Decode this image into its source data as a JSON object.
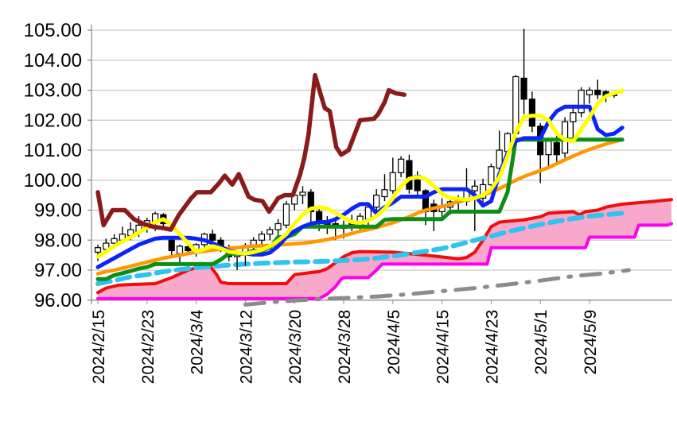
{
  "chart_data": {
    "type": "candlestick",
    "title": "",
    "xlabel": "",
    "ylabel": "",
    "grid": true,
    "legend": "none",
    "ylim": [
      96,
      105
    ],
    "y_step": 1,
    "y_tick_labels": [
      "105.00",
      "104.00",
      "103.00",
      "102.00",
      "101.00",
      "100.00",
      "99.00",
      "98.00",
      "97.00",
      "96.00"
    ],
    "x_tick_labels": [
      "2024/2/15",
      "2024/2/23",
      "2024/3/4",
      "2024/3/12",
      "2024/3/20",
      "2024/3/28",
      "2024/4/5",
      "2024/4/15",
      "2024/4/23",
      "2024/5/1",
      "2024/5/9"
    ],
    "x_tick_indices": [
      0,
      6,
      12,
      18,
      24,
      30,
      36,
      42,
      48,
      54,
      60
    ],
    "total_slots": 71,
    "colors": {
      "up_candle": "#ffffff",
      "down_candle": "#000000",
      "candle_outline": "#000000",
      "grid": "#c9c9c9",
      "axis": "#8f8f8f",
      "text": "#000000",
      "dark_red": "#8b1a1a",
      "yellow": "#ffff00",
      "blue": "#0b24fb",
      "green": "#0d8f16",
      "orange": "#ff9800",
      "cyan": "#2fc3f2",
      "gray": "#8c8c8c",
      "cloud_top": "#f20c0c",
      "cloud_bottom": "#ff00ee",
      "cloud_fill": "#f8a8cb"
    },
    "candles_ohlc": [
      [
        97.6,
        97.85,
        97.3,
        97.75
      ],
      [
        97.7,
        98.05,
        97.55,
        97.9
      ],
      [
        97.9,
        98.2,
        97.75,
        98.05
      ],
      [
        98.0,
        98.45,
        97.9,
        98.2
      ],
      [
        98.15,
        98.6,
        98.0,
        98.35
      ],
      [
        98.25,
        98.8,
        98.1,
        98.5
      ],
      [
        98.4,
        98.75,
        98.25,
        98.65
      ],
      [
        98.6,
        98.95,
        98.3,
        98.88
      ],
      [
        98.85,
        98.9,
        98.35,
        98.55
      ],
      [
        98.0,
        98.1,
        97.5,
        97.65
      ],
      [
        97.55,
        97.85,
        97.25,
        97.8
      ],
      [
        97.78,
        97.95,
        97.55,
        97.65
      ],
      [
        97.65,
        97.9,
        97.45,
        97.85
      ],
      [
        97.85,
        98.25,
        97.7,
        98.2
      ],
      [
        98.2,
        98.35,
        97.9,
        98.0
      ],
      [
        98.0,
        98.1,
        97.6,
        97.72
      ],
      [
        97.7,
        97.85,
        97.3,
        97.45
      ],
      [
        97.45,
        97.65,
        97.0,
        97.55
      ],
      [
        97.55,
        97.9,
        97.15,
        97.82
      ],
      [
        97.82,
        98.1,
        97.6,
        98.0
      ],
      [
        98.0,
        98.3,
        97.85,
        98.2
      ],
      [
        98.2,
        98.45,
        98.0,
        98.35
      ],
      [
        98.35,
        98.7,
        98.1,
        98.55
      ],
      [
        98.5,
        99.3,
        98.4,
        99.2
      ],
      [
        99.2,
        99.85,
        99.0,
        99.5
      ],
      [
        99.5,
        99.8,
        99.2,
        99.6
      ],
      [
        99.6,
        99.7,
        98.6,
        98.95
      ],
      [
        98.95,
        99.1,
        98.3,
        98.6
      ],
      [
        98.65,
        98.8,
        98.2,
        98.5
      ],
      [
        98.55,
        98.7,
        98.0,
        98.45
      ],
      [
        98.5,
        98.65,
        98.05,
        98.4
      ],
      [
        98.55,
        98.85,
        98.3,
        98.45
      ],
      [
        98.45,
        98.9,
        98.35,
        98.8
      ],
      [
        98.7,
        99.2,
        98.4,
        99.1
      ],
      [
        99.1,
        99.7,
        98.95,
        99.5
      ],
      [
        99.45,
        100.2,
        99.3,
        99.68
      ],
      [
        99.65,
        100.75,
        99.55,
        100.25
      ],
      [
        100.25,
        100.8,
        100.1,
        100.7
      ],
      [
        100.65,
        100.85,
        99.55,
        99.7
      ],
      [
        100.15,
        100.3,
        99.4,
        99.65
      ],
      [
        99.65,
        99.7,
        98.5,
        98.95
      ],
      [
        99.2,
        99.35,
        98.3,
        98.95
      ],
      [
        98.95,
        99.4,
        98.75,
        99.15
      ],
      [
        99.1,
        99.35,
        98.85,
        99.28
      ],
      [
        99.25,
        99.5,
        98.9,
        99.35
      ],
      [
        99.3,
        100.4,
        99.15,
        99.7
      ],
      [
        99.65,
        100.0,
        98.3,
        99.8
      ],
      [
        99.4,
        100.05,
        99.1,
        99.85
      ],
      [
        99.85,
        100.55,
        99.6,
        100.45
      ],
      [
        100.4,
        101.65,
        100.3,
        101.0
      ],
      [
        100.95,
        101.6,
        100.7,
        101.55
      ],
      [
        101.55,
        103.5,
        101.4,
        103.45
      ],
      [
        103.4,
        105.05,
        102.2,
        102.7
      ],
      [
        102.7,
        102.95,
        101.6,
        101.8
      ],
      [
        101.8,
        101.9,
        99.9,
        100.85
      ],
      [
        100.85,
        101.4,
        100.4,
        101.3
      ],
      [
        101.25,
        101.5,
        100.55,
        100.85
      ],
      [
        100.9,
        102.1,
        100.75,
        101.95
      ],
      [
        101.95,
        102.5,
        101.35,
        102.25
      ],
      [
        102.25,
        103.1,
        102.1,
        103.0
      ],
      [
        102.85,
        103.1,
        102.55,
        103.0
      ],
      [
        103.0,
        103.35,
        102.7,
        102.85
      ],
      [
        102.95,
        103.0,
        102.6,
        102.8
      ],
      [
        102.9,
        102.95,
        102.75,
        102.82
      ]
    ],
    "series": {
      "yellow_line": {
        "style": "solid",
        "width": 5,
        "start_index": 0,
        "values": [
          97.45,
          97.62,
          97.8,
          97.95,
          98.1,
          98.25,
          98.42,
          98.6,
          98.7,
          98.5,
          98.2,
          97.9,
          97.62,
          97.7,
          97.8,
          97.72,
          97.62,
          97.58,
          97.55,
          97.6,
          97.68,
          97.8,
          97.98,
          98.2,
          98.55,
          98.85,
          99.05,
          99.1,
          99.05,
          98.9,
          98.75,
          98.6,
          98.58,
          98.65,
          98.8,
          99.05,
          99.4,
          99.8,
          100.05,
          100.1,
          100.05,
          99.8,
          99.55,
          99.4,
          99.38,
          99.35,
          99.4,
          99.5,
          99.7,
          100.1,
          100.8,
          101.6,
          102.1,
          102.15,
          102.15,
          102.0,
          101.55,
          101.35,
          101.3,
          101.7,
          102.1,
          102.55,
          102.8,
          102.9,
          102.98
        ]
      },
      "blue_line": {
        "style": "solid",
        "width": 5,
        "start_index": 0,
        "values": [
          97.1,
          97.25,
          97.4,
          97.55,
          97.7,
          97.85,
          97.95,
          98.05,
          98.08,
          98.08,
          98.08,
          98.08,
          98.05,
          98.0,
          97.9,
          97.78,
          97.65,
          97.58,
          97.55,
          97.52,
          97.52,
          97.58,
          97.8,
          98.1,
          98.3,
          98.45,
          98.55,
          98.6,
          98.6,
          98.7,
          98.85,
          99.05,
          99.2,
          99.2,
          98.9,
          99.1,
          99.25,
          99.45,
          99.45,
          99.45,
          99.45,
          99.6,
          99.7,
          99.7,
          99.7,
          99.7,
          99.5,
          99.15,
          99.3,
          100.2,
          100.9,
          101.3,
          101.4,
          101.4,
          101.4,
          101.95,
          102.3,
          102.45,
          102.45,
          102.45,
          102.45,
          101.7,
          101.5,
          101.55,
          101.75
        ]
      },
      "green_line": {
        "style": "solid",
        "width": 5,
        "start_index": 0,
        "values": [
          96.7,
          96.7,
          96.83,
          96.9,
          96.97,
          97.05,
          97.1,
          97.2,
          97.2,
          97.2,
          97.2,
          97.2,
          97.2,
          97.2,
          97.2,
          97.35,
          97.55,
          97.55,
          97.55,
          97.65,
          97.65,
          97.75,
          98.1,
          98.1,
          98.2,
          98.45,
          98.45,
          98.45,
          98.45,
          98.45,
          98.45,
          98.45,
          98.45,
          98.45,
          98.45,
          98.68,
          98.7,
          98.7,
          98.7,
          98.7,
          98.7,
          98.7,
          98.7,
          98.95,
          98.95,
          98.95,
          98.95,
          98.95,
          98.95,
          98.95,
          99.6,
          101.35,
          101.35,
          101.35,
          101.35,
          101.35,
          101.35,
          101.35,
          101.35,
          101.35,
          101.35,
          101.35,
          101.35,
          101.35,
          101.35
        ]
      },
      "orange_line": {
        "style": "solid",
        "width": 4.5,
        "start_index": 0,
        "values": [
          96.88,
          96.95,
          97.0,
          97.07,
          97.13,
          97.2,
          97.27,
          97.33,
          97.4,
          97.45,
          97.5,
          97.55,
          97.6,
          97.63,
          97.67,
          97.7,
          97.73,
          97.75,
          97.78,
          97.8,
          97.81,
          97.82,
          97.84,
          97.86,
          97.88,
          97.9,
          97.93,
          97.97,
          98.02,
          98.08,
          98.15,
          98.22,
          98.3,
          98.35,
          98.42,
          98.5,
          98.58,
          98.68,
          98.78,
          98.9,
          99.0,
          99.07,
          99.12,
          99.2,
          99.28,
          99.35,
          99.42,
          99.5,
          99.6,
          99.72,
          99.85,
          100.0,
          100.12,
          100.22,
          100.32,
          100.42,
          100.55,
          100.68,
          100.8,
          100.92,
          101.02,
          101.12,
          101.2,
          101.28,
          101.35
        ]
      },
      "dark_red_line": {
        "style": "solid",
        "width": 5.5,
        "points": [
          [
            0,
            99.6
          ],
          [
            0.7,
            98.5
          ],
          [
            1.8,
            99.0
          ],
          [
            3.3,
            99.0
          ],
          [
            4.4,
            98.7
          ],
          [
            5.5,
            98.55
          ],
          [
            6.7,
            98.45
          ],
          [
            8,
            98.4
          ],
          [
            8.9,
            98.35
          ],
          [
            9.9,
            98.85
          ],
          [
            11.4,
            99.4
          ],
          [
            12.1,
            99.6
          ],
          [
            13.8,
            99.6
          ],
          [
            14.8,
            99.9
          ],
          [
            15.5,
            100.15
          ],
          [
            16.4,
            99.85
          ],
          [
            17.2,
            100.2
          ],
          [
            18.4,
            99.45
          ],
          [
            19.1,
            99.35
          ],
          [
            20.1,
            99.3
          ],
          [
            20.9,
            98.95
          ],
          [
            22,
            99.4
          ],
          [
            22.8,
            99.5
          ],
          [
            23.8,
            99.5
          ],
          [
            24.7,
            100.2
          ],
          [
            25.2,
            100.75
          ],
          [
            25.7,
            101.5
          ],
          [
            26.5,
            103.5
          ],
          [
            27.2,
            102.85
          ],
          [
            27.7,
            102.4
          ],
          [
            28.3,
            102.3
          ],
          [
            29.1,
            101.1
          ],
          [
            29.7,
            100.85
          ],
          [
            30.6,
            101.0
          ],
          [
            31.3,
            101.5
          ],
          [
            32,
            102.0
          ],
          [
            33.7,
            102.05
          ],
          [
            34.2,
            102.2
          ],
          [
            35,
            102.6
          ],
          [
            35.5,
            103.0
          ],
          [
            36.3,
            102.9
          ],
          [
            37.4,
            102.85
          ]
        ]
      },
      "cyan_dashed_line": {
        "style": "dashed",
        "width": 6,
        "points": [
          [
            0,
            96.55
          ],
          [
            2,
            96.65
          ],
          [
            4,
            96.78
          ],
          [
            6,
            96.85
          ],
          [
            8,
            96.95
          ],
          [
            10,
            97.02
          ],
          [
            12,
            97.08
          ],
          [
            14,
            97.12
          ],
          [
            16,
            97.17
          ],
          [
            18,
            97.2
          ],
          [
            20,
            97.23
          ],
          [
            22,
            97.25
          ],
          [
            24,
            97.27
          ],
          [
            26,
            97.28
          ],
          [
            28,
            97.3
          ],
          [
            30,
            97.32
          ],
          [
            32,
            97.35
          ],
          [
            34,
            97.4
          ],
          [
            36,
            97.47
          ],
          [
            38,
            97.55
          ],
          [
            40,
            97.63
          ],
          [
            42,
            97.72
          ],
          [
            44,
            97.85
          ],
          [
            46,
            98.0
          ],
          [
            48,
            98.13
          ],
          [
            50,
            98.28
          ],
          [
            52,
            98.4
          ],
          [
            54,
            98.52
          ],
          [
            56,
            98.63
          ],
          [
            58,
            98.72
          ],
          [
            60,
            98.8
          ],
          [
            62,
            98.85
          ],
          [
            64,
            98.9
          ]
        ]
      },
      "gray_dashdot_line": {
        "style": "dashdot",
        "width": 5,
        "points": [
          [
            18,
            95.85
          ],
          [
            22,
            95.95
          ],
          [
            26,
            96.02
          ],
          [
            30,
            96.07
          ],
          [
            34,
            96.12
          ],
          [
            38,
            96.2
          ],
          [
            42,
            96.3
          ],
          [
            46,
            96.4
          ],
          [
            50,
            96.52
          ],
          [
            54,
            96.65
          ],
          [
            58,
            96.8
          ],
          [
            62,
            96.9
          ],
          [
            64.8,
            97.0
          ]
        ]
      }
    },
    "cloud": {
      "fill": "#f8a8cb",
      "top_points": [
        [
          0,
          96.25
        ],
        [
          1,
          96.4
        ],
        [
          2.5,
          96.5
        ],
        [
          4,
          96.52
        ],
        [
          7,
          96.55
        ],
        [
          9,
          96.75
        ],
        [
          11,
          97.0
        ],
        [
          12,
          97.08
        ],
        [
          13.8,
          97.1
        ],
        [
          14.5,
          96.85
        ],
        [
          15,
          96.6
        ],
        [
          16,
          96.55
        ],
        [
          23,
          96.55
        ],
        [
          24,
          96.85
        ],
        [
          26,
          96.92
        ],
        [
          27,
          96.95
        ],
        [
          28,
          97.05
        ],
        [
          29,
          97.25
        ],
        [
          30,
          97.45
        ],
        [
          31,
          97.58
        ],
        [
          32,
          97.62
        ],
        [
          36,
          97.6
        ],
        [
          38,
          97.55
        ],
        [
          41,
          97.47
        ],
        [
          44,
          97.38
        ],
        [
          45,
          97.42
        ],
        [
          46,
          97.6
        ],
        [
          47,
          98.0
        ],
        [
          48,
          98.45
        ],
        [
          49,
          98.6
        ],
        [
          52,
          98.68
        ],
        [
          54,
          98.78
        ],
        [
          55,
          98.9
        ],
        [
          58,
          98.95
        ],
        [
          58.8,
          98.85
        ],
        [
          59.5,
          98.95
        ],
        [
          61,
          99.0
        ],
        [
          62,
          99.1
        ],
        [
          64,
          99.2
        ],
        [
          67,
          99.27
        ],
        [
          70,
          99.35
        ]
      ],
      "bottom_points": [
        [
          0,
          96.05
        ],
        [
          27,
          96.05
        ],
        [
          28,
          96.2
        ],
        [
          29,
          96.45
        ],
        [
          29.7,
          96.7
        ],
        [
          30,
          96.75
        ],
        [
          33,
          96.75
        ],
        [
          34,
          97.0
        ],
        [
          34.7,
          97.2
        ],
        [
          47.5,
          97.2
        ],
        [
          48,
          97.75
        ],
        [
          59.5,
          97.75
        ],
        [
          60,
          98.1
        ],
        [
          65.5,
          98.1
        ],
        [
          66,
          98.5
        ],
        [
          69.5,
          98.5
        ],
        [
          70,
          98.55
        ]
      ]
    }
  }
}
